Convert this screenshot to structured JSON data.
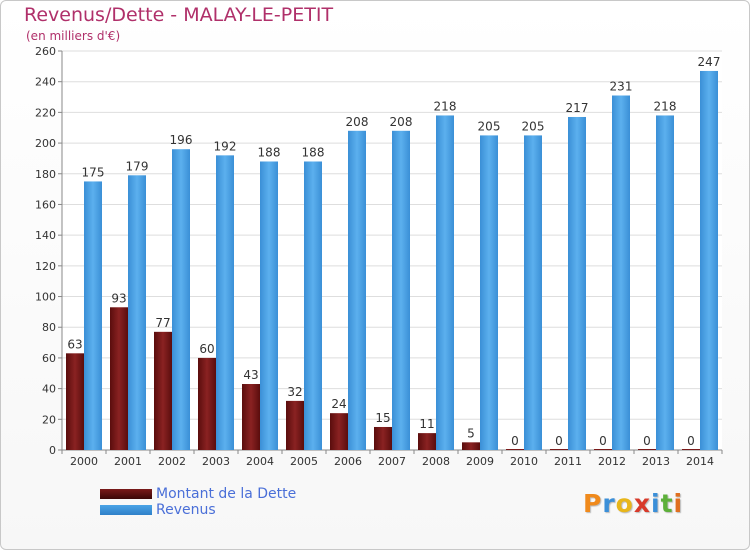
{
  "header": {
    "title": "Revenus/Dette - MALAY-LE-PETIT",
    "subtitle": "(en milliers d'€)"
  },
  "legend": {
    "items": [
      {
        "label": "Montant de la Dette",
        "color": "#7a1a1a"
      },
      {
        "label": "Revenus",
        "color": "#4aa3e6"
      }
    ]
  },
  "logo": {
    "letters": [
      "P",
      "r",
      "o",
      "x",
      "i",
      "t",
      "i"
    ],
    "colors": [
      "#f08a1c",
      "#3b8fd8",
      "#e8b61a",
      "#d83a2a",
      "#3b8fd8",
      "#5db03a",
      "#e07020"
    ]
  },
  "chart_data": {
    "type": "bar",
    "categories": [
      "2000",
      "2001",
      "2002",
      "2003",
      "2004",
      "2005",
      "2006",
      "2007",
      "2008",
      "2009",
      "2010",
      "2011",
      "2012",
      "2013",
      "2014"
    ],
    "series": [
      {
        "name": "Montant de la Dette",
        "values": [
          63,
          93,
          77,
          60,
          43,
          32,
          24,
          15,
          11,
          5,
          0,
          0,
          0,
          0,
          0
        ],
        "color": "#7a1a1a"
      },
      {
        "name": "Revenus",
        "values": [
          175,
          179,
          196,
          192,
          188,
          188,
          208,
          208,
          218,
          205,
          205,
          217,
          231,
          218,
          247
        ],
        "color": "#4aa3e6"
      }
    ],
    "ylim": [
      0,
      260
    ],
    "yticks": [
      0,
      20,
      40,
      60,
      80,
      100,
      120,
      140,
      160,
      180,
      200,
      220,
      240,
      260
    ],
    "grid": true
  }
}
